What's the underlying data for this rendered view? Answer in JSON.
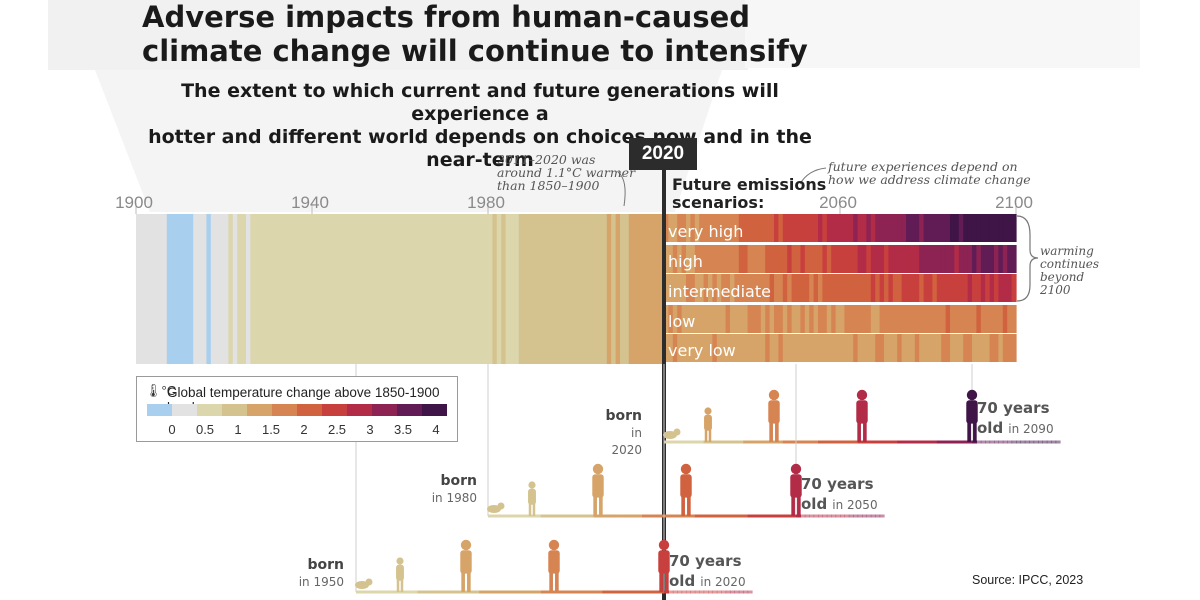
{
  "title_line1": "Adverse impacts from human-caused",
  "title_line2": "climate change will continue to intensify",
  "subtitle_line1": "The extent to which current and future generations will experience a",
  "subtitle_line2": "hotter and different world depends on choices now and in the near-term",
  "year_badge": "2020",
  "note_2011_line1": "2011–2020 was",
  "note_2011_line2": "around 1.1°C warmer",
  "note_2011_line3": "than 1850–1900",
  "note_future_line1": "future experiences depend on",
  "note_future_line2": "how we address climate change",
  "future_label_line1": "Future emissions",
  "future_label_line2": "scenarios:",
  "warming_note": [
    "warming",
    "continues",
    "beyond",
    "2100"
  ],
  "source": "Source: IPCC, 2023",
  "legend": {
    "title": "Global temperature change above 1850-1900 levels",
    "unit": "°C",
    "ticks": [
      "0",
      "0.5",
      "1",
      "1.5",
      "2",
      "2.5",
      "3",
      "3.5",
      "4"
    ],
    "colors": [
      "#a9cfee",
      "#e2e2e2",
      "#dcd6ad",
      "#d4c38f",
      "#d6a469",
      "#d68452",
      "#d1623f",
      "#c8403d",
      "#b32c47",
      "#8d2352",
      "#611c55",
      "#3f1447"
    ]
  },
  "chart_data": {
    "type": "heatmap",
    "x_axis_ticks": [
      1900,
      1940,
      1980,
      2060,
      2100
    ],
    "historical_range": [
      1900,
      2020
    ],
    "historical_levels": [
      0.1,
      0.05,
      0.1,
      0.15,
      0.1,
      0.2,
      0.1,
      -0.2,
      -0.2,
      -0.1,
      -0.1,
      -0.1,
      -0.1,
      0.05,
      0.1,
      0.2,
      -0.2,
      0.1,
      0.2,
      0.1,
      0.2,
      0.3,
      0.2,
      0.3,
      0.3,
      0.2,
      0.4,
      0.3,
      0.3,
      0.3,
      0.4,
      0.3,
      0.4,
      0.3,
      0.3,
      0.4,
      0.4,
      0.4,
      0.5,
      0.5,
      0.3,
      0.6,
      0.5,
      0.5,
      0.6,
      0.5,
      0.4,
      0.4,
      0.4,
      0.4,
      0.3,
      0.5,
      0.4,
      0.5,
      0.4,
      0.3,
      0.35,
      0.5,
      0.5,
      0.45,
      0.45,
      0.4,
      0.5,
      0.4,
      0.35,
      0.3,
      0.35,
      0.35,
      0.4,
      0.45,
      0.5,
      0.35,
      0.4,
      0.5,
      0.4,
      0.4,
      0.35,
      0.5,
      0.45,
      0.55,
      0.6,
      0.65,
      0.55,
      0.65,
      0.6,
      0.55,
      0.6,
      0.7,
      0.75,
      0.65,
      0.8,
      0.7,
      0.65,
      0.7,
      0.75,
      0.9,
      0.75,
      0.85,
      1.0,
      0.85,
      0.9,
      0.95,
      1.0,
      1.0,
      0.95,
      1.0,
      0.95,
      1.05,
      1.0,
      1.1,
      0.95,
      1.0,
      1.05,
      1.1,
      1.15,
      1.2,
      1.3,
      1.25,
      1.15,
      1.25
    ],
    "scenarios": [
      {
        "name": "very high",
        "level_2020": 1.3,
        "level_2100": 4.4
      },
      {
        "name": "high",
        "level_2020": 1.3,
        "level_2100": 3.6
      },
      {
        "name": "intermediate",
        "level_2020": 1.3,
        "level_2100": 2.7
      },
      {
        "name": "low",
        "level_2020": 1.3,
        "level_2100": 1.8
      },
      {
        "name": "very low",
        "level_2020": 1.3,
        "level_2100": 1.4
      }
    ],
    "generations": [
      {
        "born_label": "born",
        "born_in": "in 2020",
        "birth_year": 2020,
        "age70_year": 2090,
        "age_label": "70 years",
        "old_label": "old",
        "old_in": "in 2090"
      },
      {
        "born_label": "born",
        "born_in": "in 1980",
        "birth_year": 1980,
        "age70_year": 2050,
        "age_label": "70 years",
        "old_label": "old",
        "old_in": "in 2050"
      },
      {
        "born_label": "born",
        "born_in": "in 1950",
        "birth_year": 1950,
        "age70_year": 2020,
        "age_label": "70 years",
        "old_label": "old",
        "old_in": "in 2020"
      }
    ]
  }
}
